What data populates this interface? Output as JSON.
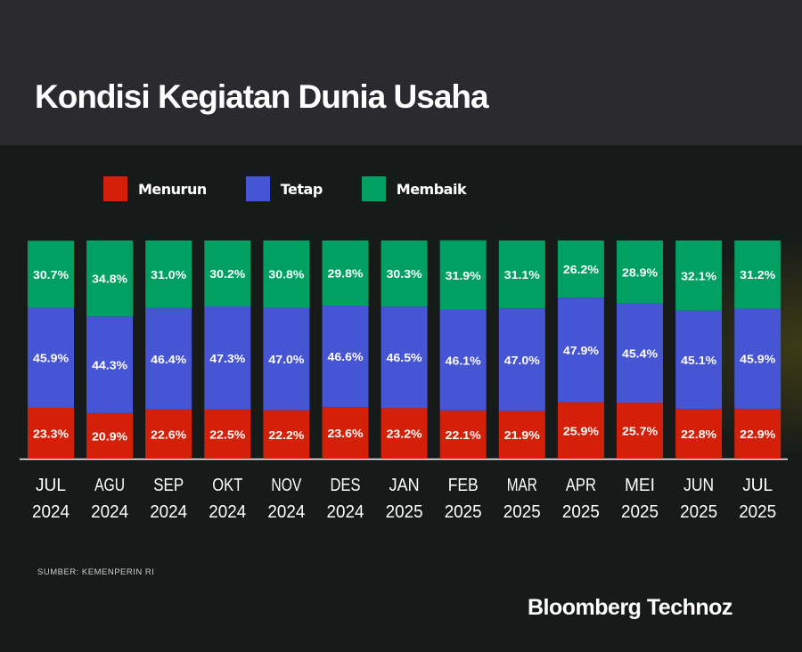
{
  "header": {
    "title": "Kondisi Kegiatan Dunia Usaha"
  },
  "colors": {
    "menurun": "#d42008",
    "tetap": "#4655d3",
    "membaik": "#00a063",
    "header_bg": "#2a2a2f",
    "body_bg": "#161a18"
  },
  "legend": [
    {
      "label": "Menurun",
      "color": "#d42008"
    },
    {
      "label": "Tetap",
      "color": "#4655d3"
    },
    {
      "label": "Membaik",
      "color": "#00a063"
    }
  ],
  "chart_data": {
    "type": "bar",
    "stacked": true,
    "title": "Kondisi Kegiatan Dunia Usaha",
    "xlabel": "",
    "ylabel": "",
    "ylim": [
      0,
      100
    ],
    "grid": false,
    "legend_position": "top-left",
    "categories": [
      [
        "JUL",
        "2024"
      ],
      [
        "AGU",
        "2024"
      ],
      [
        "SEP",
        "2024"
      ],
      [
        "OKT",
        "2024"
      ],
      [
        "NOV",
        "2024"
      ],
      [
        "DES",
        "2024"
      ],
      [
        "JAN",
        "2025"
      ],
      [
        "FEB",
        "2025"
      ],
      [
        "MAR",
        "2025"
      ],
      [
        "APR",
        "2025"
      ],
      [
        "MEI",
        "2025"
      ],
      [
        "JUN",
        "2025"
      ],
      [
        "JUL",
        "2025"
      ]
    ],
    "series": [
      {
        "name": "Menurun",
        "color": "#d42008",
        "values": [
          23.3,
          20.9,
          22.6,
          22.5,
          22.2,
          23.6,
          23.2,
          22.1,
          21.9,
          25.9,
          25.7,
          22.8,
          22.9
        ]
      },
      {
        "name": "Tetap",
        "color": "#4655d3",
        "values": [
          45.9,
          44.3,
          46.4,
          47.3,
          47.0,
          46.6,
          46.5,
          46.1,
          47.0,
          47.9,
          45.4,
          45.1,
          45.9
        ]
      },
      {
        "name": "Membaik",
        "color": "#00a063",
        "values": [
          30.7,
          34.8,
          31.0,
          30.2,
          30.8,
          29.8,
          30.3,
          31.9,
          31.1,
          26.2,
          28.9,
          32.1,
          31.2
        ]
      }
    ],
    "value_suffix": "%"
  },
  "footer": {
    "source": "SUMBER: KEMENPERIN RI",
    "brand": "Bloomberg Technoz"
  }
}
